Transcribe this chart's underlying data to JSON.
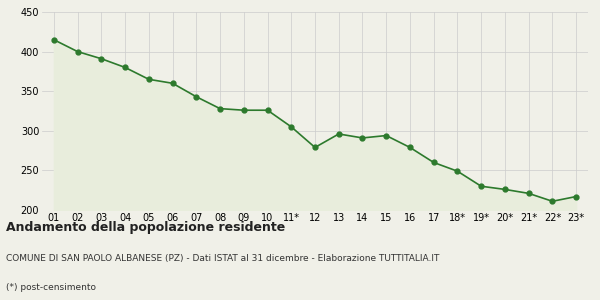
{
  "x_labels": [
    "01",
    "02",
    "03",
    "04",
    "05",
    "06",
    "07",
    "08",
    "09",
    "10",
    "11*",
    "12",
    "13",
    "14",
    "15",
    "16",
    "17",
    "18*",
    "19*",
    "20*",
    "21*",
    "22*",
    "23*"
  ],
  "y_values": [
    415,
    400,
    391,
    380,
    365,
    360,
    343,
    328,
    326,
    326,
    305,
    279,
    296,
    291,
    294,
    279,
    260,
    249,
    230,
    226,
    221,
    211,
    217
  ],
  "line_color": "#2d7a2d",
  "fill_color": "#e8eddc",
  "marker_color": "#2d7a2d",
  "background_color": "#f0f0e8",
  "grid_color": "#cccccc",
  "ylim": [
    200,
    450
  ],
  "yticks": [
    200,
    250,
    300,
    350,
    400,
    450
  ],
  "title": "Andamento della popolazione residente",
  "subtitle": "COMUNE DI SAN PAOLO ALBANESE (PZ) - Dati ISTAT al 31 dicembre - Elaborazione TUTTITALIA.IT",
  "footnote": "(*) post-censimento",
  "title_fontsize": 9,
  "subtitle_fontsize": 6.5,
  "footnote_fontsize": 6.5,
  "tick_fontsize": 7
}
